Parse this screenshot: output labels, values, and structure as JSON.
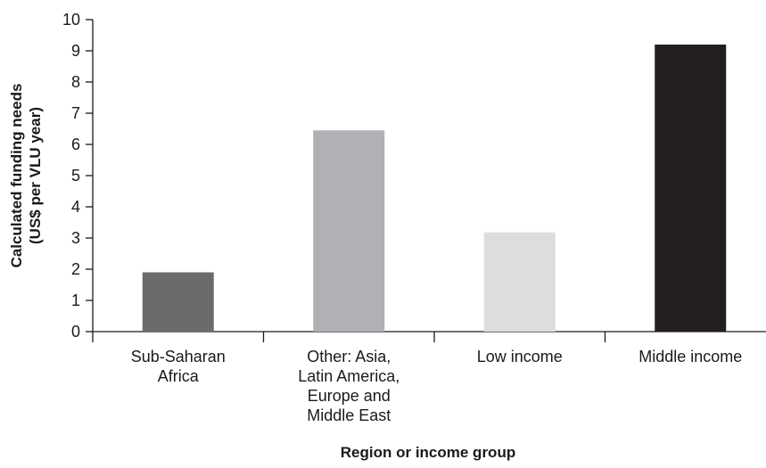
{
  "chart_data": {
    "type": "bar",
    "categories": [
      [
        "Sub-Saharan",
        "Africa"
      ],
      [
        "Other: Asia,",
        "Latin America,",
        "Europe and",
        "Middle East"
      ],
      [
        "Low income"
      ],
      [
        "Middle income"
      ]
    ],
    "values": [
      1.9,
      6.45,
      3.18,
      9.2
    ],
    "bar_colors": [
      "#6b6b6e",
      "#b0b1b4",
      "#dcdddf",
      "#231f20"
    ],
    "xlabel": "Region or income group",
    "ylabel": [
      "Calculated funding needs",
      "(US$ per VLU year)"
    ],
    "ylim": [
      0,
      10
    ],
    "yticks": [
      "0",
      "1",
      "2",
      "3",
      "4",
      "5",
      "6",
      "7",
      "8",
      "9",
      "10"
    ],
    "grid": false,
    "legend": "none"
  }
}
